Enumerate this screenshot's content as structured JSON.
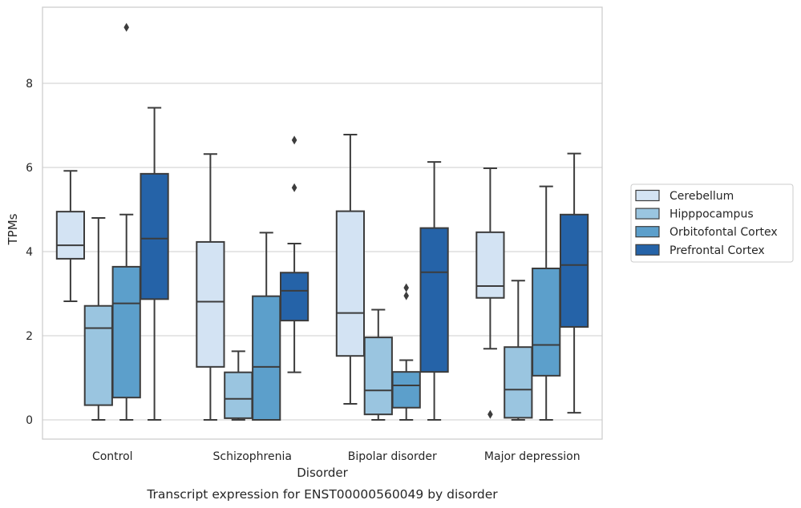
{
  "chart_data": {
    "type": "box",
    "title": "Transcript expression for ENST00000560049 by disorder",
    "xlabel": "Disorder",
    "ylabel": "TPMs",
    "ylim": [
      -0.45,
      9.9
    ],
    "yticks": [
      0,
      2,
      4,
      6,
      8
    ],
    "grid": "horizontal",
    "legend_position": "right",
    "categories": [
      "Control",
      "Schizophrenia",
      "Bipolar disorder",
      "Major depression"
    ],
    "series": [
      {
        "name": "Cerebellum",
        "color": "#d3e3f3",
        "boxes": [
          {
            "whisker_low": 2.82,
            "q1": 3.83,
            "median": 4.15,
            "q3": 4.95,
            "whisker_high": 5.92,
            "outliers": []
          },
          {
            "whisker_low": 0.0,
            "q1": 1.26,
            "median": 2.81,
            "q3": 4.23,
            "whisker_high": 6.32,
            "outliers": []
          },
          {
            "whisker_low": 0.38,
            "q1": 1.52,
            "median": 2.54,
            "q3": 4.96,
            "whisker_high": 6.78,
            "outliers": []
          },
          {
            "whisker_low": 1.69,
            "q1": 2.9,
            "median": 3.18,
            "q3": 4.46,
            "whisker_high": 5.98,
            "outliers": [
              0.13
            ]
          }
        ]
      },
      {
        "name": "Hipppocampus",
        "color": "#9ac5e0",
        "boxes": [
          {
            "whisker_low": 0.0,
            "q1": 0.35,
            "median": 2.18,
            "q3": 2.71,
            "whisker_high": 4.8,
            "outliers": []
          },
          {
            "whisker_low": 0.0,
            "q1": 0.04,
            "median": 0.5,
            "q3": 1.13,
            "whisker_high": 1.63,
            "outliers": []
          },
          {
            "whisker_low": 0.0,
            "q1": 0.13,
            "median": 0.7,
            "q3": 1.96,
            "whisker_high": 2.62,
            "outliers": []
          },
          {
            "whisker_low": 0.0,
            "q1": 0.05,
            "median": 0.72,
            "q3": 1.73,
            "whisker_high": 3.31,
            "outliers": []
          }
        ]
      },
      {
        "name": "Orbitofontal Cortex",
        "color": "#5c9fcb",
        "boxes": [
          {
            "whisker_low": 0.0,
            "q1": 0.53,
            "median": 2.77,
            "q3": 3.64,
            "whisker_high": 4.88,
            "outliers": [
              9.33
            ]
          },
          {
            "whisker_low": 0.0,
            "q1": 0.0,
            "median": 1.26,
            "q3": 2.94,
            "whisker_high": 4.45,
            "outliers": []
          },
          {
            "whisker_low": 0.0,
            "q1": 0.29,
            "median": 0.82,
            "q3": 1.14,
            "whisker_high": 1.42,
            "outliers": [
              2.95,
              3.14
            ]
          },
          {
            "whisker_low": 0.0,
            "q1": 1.05,
            "median": 1.78,
            "q3": 3.6,
            "whisker_high": 5.55,
            "outliers": []
          }
        ]
      },
      {
        "name": "Prefrontal Cortex",
        "color": "#2563a8",
        "boxes": [
          {
            "whisker_low": 0.0,
            "q1": 2.87,
            "median": 4.31,
            "q3": 5.85,
            "whisker_high": 7.42,
            "outliers": []
          },
          {
            "whisker_low": 1.13,
            "q1": 2.36,
            "median": 3.07,
            "q3": 3.5,
            "whisker_high": 4.19,
            "outliers": [
              5.52,
              6.65
            ]
          },
          {
            "whisker_low": 0.0,
            "q1": 1.14,
            "median": 3.51,
            "q3": 4.56,
            "whisker_high": 6.13,
            "outliers": []
          },
          {
            "whisker_low": 0.17,
            "q1": 2.21,
            "median": 3.68,
            "q3": 4.88,
            "whisker_high": 6.33,
            "outliers": []
          }
        ]
      }
    ]
  }
}
